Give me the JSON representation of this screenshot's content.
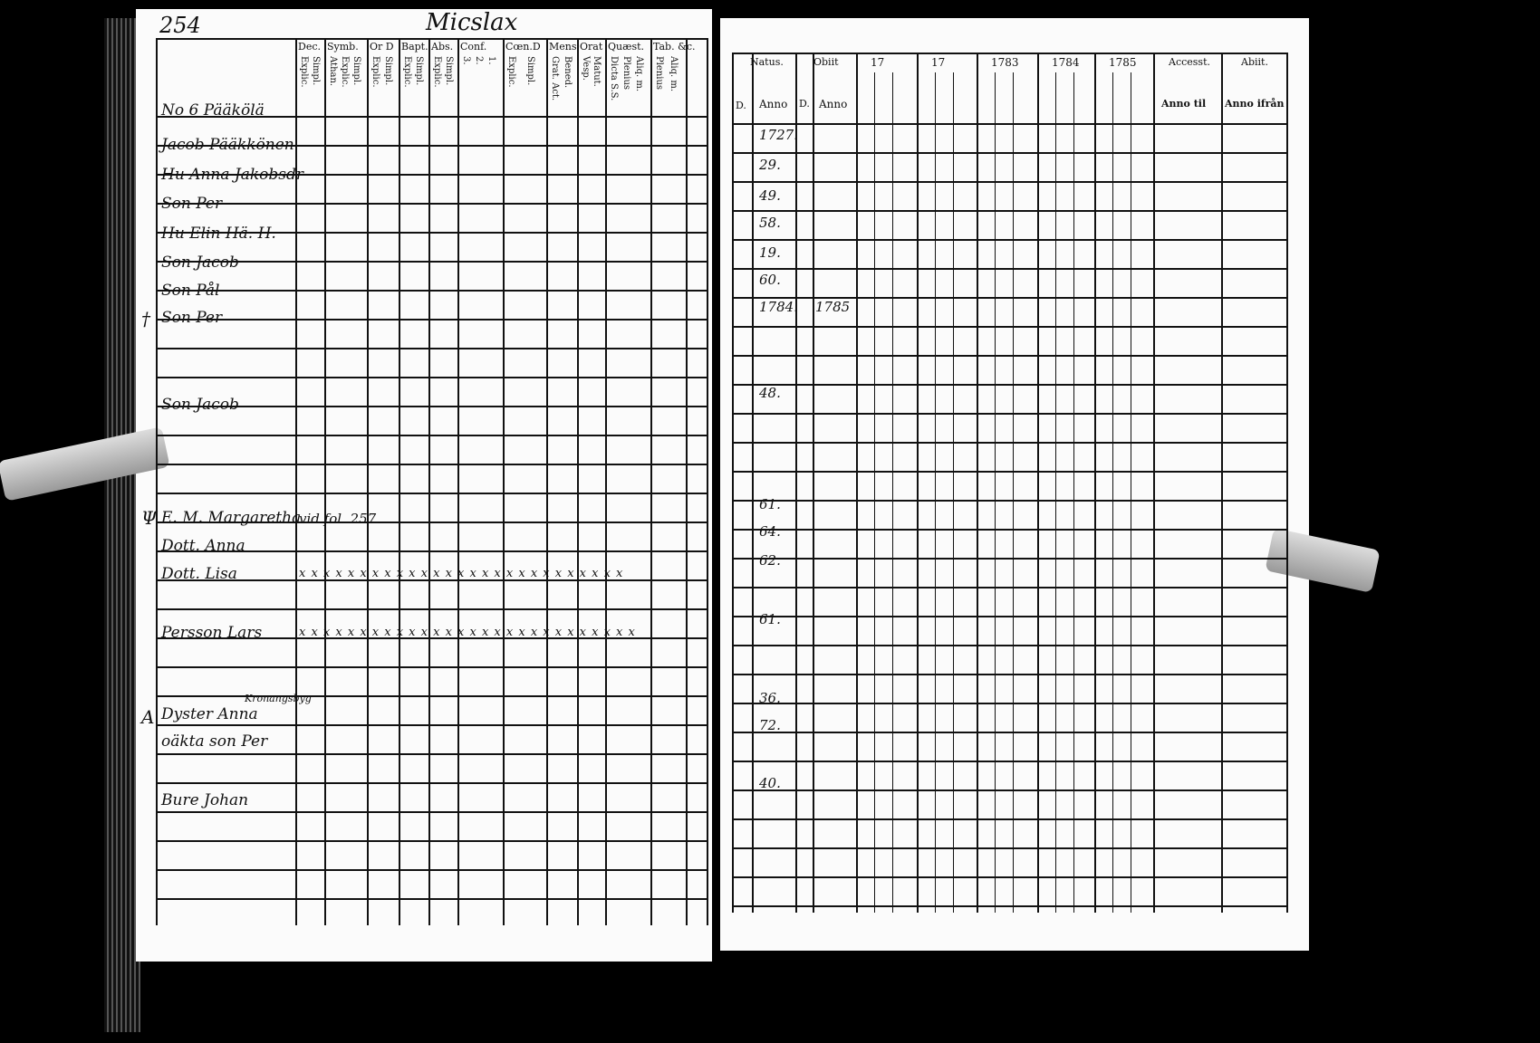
{
  "left_page": {
    "page_number": "254",
    "title": "Micslax",
    "column_groups": [
      {
        "label": "Dec.",
        "sub": [
          "Explic.",
          "Simpl."
        ]
      },
      {
        "label": "Symb.",
        "sub": [
          "Athan.",
          "Explic.",
          "Simpl."
        ]
      },
      {
        "label": "Or D",
        "sub": [
          "Explic.",
          "Simpl."
        ]
      },
      {
        "label": "Bapt.",
        "sub": [
          "Explic.",
          "Simpl."
        ]
      },
      {
        "label": "Abs.",
        "sub": [
          "Explic.",
          "Simpl."
        ]
      },
      {
        "label": "Conf.",
        "sub": [
          "3.",
          "2.",
          "1."
        ]
      },
      {
        "label": "Cœn.D",
        "sub": [
          "Explic.",
          "Simpl."
        ]
      },
      {
        "label": "Mens",
        "sub": [
          "Grat. Act.",
          "Bened."
        ]
      },
      {
        "label": "Orat",
        "sub": [
          "Vesp.",
          "Matut."
        ]
      },
      {
        "label": "Quæst.",
        "sub": [
          "Dicta S.S.",
          "Plenius",
          "Aliq. m."
        ]
      },
      {
        "label": "Tab. &c.",
        "sub": [
          "Plenius",
          "Aliq. m."
        ]
      }
    ],
    "entries": [
      {
        "name": "No 6 Pääkölä"
      },
      {
        "name": "Jacob Pääkkönen"
      },
      {
        "name": "Hu Anna Jakobsdr"
      },
      {
        "name": "Son Per"
      },
      {
        "name": "Hu Elin Hä. H."
      },
      {
        "name": "Son Jacob"
      },
      {
        "name": "Son Pål"
      },
      {
        "name": "Son Per"
      },
      {
        "name": "Son Jacob"
      },
      {
        "name": "E. M. Margaretha",
        "note": "vid fol. 257."
      },
      {
        "name": "Dott. Anna"
      },
      {
        "name": "Dott. Lisa",
        "marks": "x x  x x x  x x x x  x x  x x x x x  x  x x  x x x  x x x x x"
      },
      {
        "name": "Persson Lars",
        "marks": "x x  x x x  x x x x x x  x x x x x  x  x x  x x x  x x x x x x"
      },
      {
        "name": "Dyster Anna",
        "note": "Kronangsbyg"
      },
      {
        "name": "oäkta son Per"
      },
      {
        "name": "Bure Johan"
      }
    ],
    "margin_marks": [
      "†",
      "Ψ",
      "A"
    ]
  },
  "right_page": {
    "headers": {
      "natus": "Natus.",
      "obiit": "Obiit",
      "d": "D.",
      "anno": "Anno",
      "years": [
        "17",
        "17",
        "1783",
        "1784",
        "1785"
      ],
      "accessit": "Accesst.",
      "abiit": "Abiit.",
      "anno_til": "Anno til",
      "anno_ifran": "Anno ifrån"
    },
    "birth_years": [
      {
        "year": "1727."
      },
      {
        "year": "29."
      },
      {
        "year": "49."
      },
      {
        "year": "58."
      },
      {
        "year": "19."
      },
      {
        "year": "60."
      },
      {
        "year": "1784.",
        "obiit": "1785"
      },
      {
        "year": "48."
      },
      {
        "year": "61."
      },
      {
        "year": "64."
      },
      {
        "year": "62."
      },
      {
        "year": "61."
      },
      {
        "year": "36."
      },
      {
        "year": "72."
      },
      {
        "year": "40."
      }
    ]
  }
}
